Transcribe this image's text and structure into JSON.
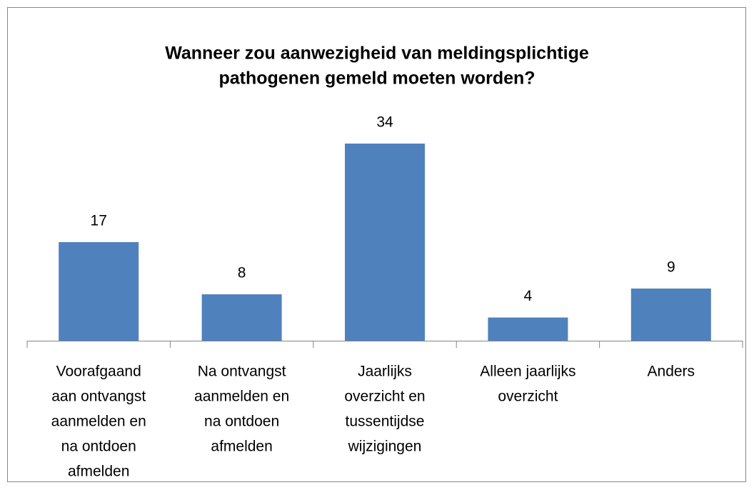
{
  "chart_data": {
    "type": "bar",
    "title": [
      "Wanneer zou aanwezigheid van meldingsplichtige",
      "pathogenen gemeld moeten worden?"
    ],
    "categories": [
      [
        "Voorafgaand",
        "aan ontvangst",
        "aanmelden en",
        "na ontdoen",
        "afmelden"
      ],
      [
        "Na ontvangst",
        "aanmelden en",
        "na ontdoen",
        "afmelden"
      ],
      [
        "Jaarlijks",
        "overzicht en",
        "tussentijdse",
        "wijzigingen"
      ],
      [
        "Alleen jaarlijks",
        "overzicht"
      ],
      [
        "Anders"
      ]
    ],
    "values": [
      17,
      8,
      34,
      4,
      9
    ],
    "color": "#4f81bd"
  }
}
